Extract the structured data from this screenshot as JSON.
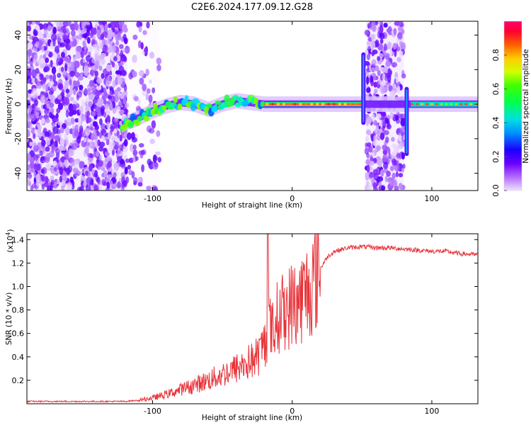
{
  "title": "C2E6.2024.177.09.12.G28",
  "chart_data": [
    {
      "type": "heatmap",
      "xlabel": "Height of straight line (km)",
      "ylabel": "Frequency (Hz)",
      "xlim": [
        -190,
        133
      ],
      "ylim": [
        -50,
        48
      ],
      "xticks": [
        -100,
        0,
        100
      ],
      "yticks": [
        -40,
        -20,
        0,
        20,
        40
      ],
      "colorbar": {
        "label": "Normalized spectral amplitude",
        "range": [
          0,
          1
        ],
        "ticks": [
          "0.0",
          "0.2",
          "0.4",
          "0.6",
          "0.8"
        ],
        "colormap": [
          "#e9d8ff",
          "#9a2cff",
          "#2a00ff",
          "#00d6ff",
          "#00ff3a",
          "#e8ff00",
          "#ff6a00",
          "#ff003c"
        ]
      },
      "noise_regions_km": [
        [
          -190,
          -118
        ],
        [
          -118,
          -95
        ],
        [
          53,
          80
        ]
      ],
      "signal_track": {
        "x": [
          -122,
          -110,
          -100,
          -90,
          -80,
          -70,
          -60,
          -50,
          -40,
          -30,
          -20,
          0,
          20,
          40,
          50,
          55,
          80,
          85,
          100,
          133
        ],
        "y": [
          -12,
          -8,
          -4,
          -1,
          1,
          0,
          -3,
          0,
          2,
          1,
          0,
          0,
          0,
          0,
          0,
          0,
          0,
          0,
          0,
          0
        ]
      },
      "vertical_streaks_km": [
        {
          "x": 51,
          "ylim": [
            -12,
            30
          ]
        },
        {
          "x": 82,
          "ylim": [
            -30,
            10
          ]
        }
      ]
    },
    {
      "type": "line",
      "xlabel": "Height of straight line (km)",
      "ylabel": "SNR (10 * v/v)",
      "y_multiplier": "(x10",
      "y_multiplier_exp": "4",
      "xlim": [
        -190,
        133
      ],
      "ylim": [
        0,
        1.45
      ],
      "xticks": [
        -100,
        0,
        100
      ],
      "yticks": [
        "0.2",
        "0.4",
        "0.6",
        "0.8",
        "1.0",
        "1.2",
        "1.4"
      ],
      "line_color": "#e8333a",
      "series": [
        {
          "x": [
            -190,
            -150,
            -120,
            -110,
            -105,
            -100,
            -90,
            -80,
            -70,
            -60,
            -50,
            -40,
            -30,
            -25,
            -20,
            -17,
            -15,
            -10,
            -5,
            0,
            5,
            10,
            15,
            20,
            25,
            30,
            40,
            50,
            60,
            70,
            80,
            90,
            100,
            110,
            120,
            133
          ],
          "y": [
            0.02,
            0.02,
            0.02,
            0.03,
            0.04,
            0.05,
            0.08,
            0.12,
            0.16,
            0.2,
            0.25,
            0.3,
            0.36,
            0.4,
            0.5,
            0.7,
            0.6,
            0.75,
            0.8,
            0.85,
            0.88,
            0.95,
            1.05,
            1.15,
            1.25,
            1.3,
            1.33,
            1.34,
            1.33,
            1.33,
            1.32,
            1.31,
            1.3,
            1.3,
            1.28,
            1.27
          ]
        }
      ]
    }
  ]
}
